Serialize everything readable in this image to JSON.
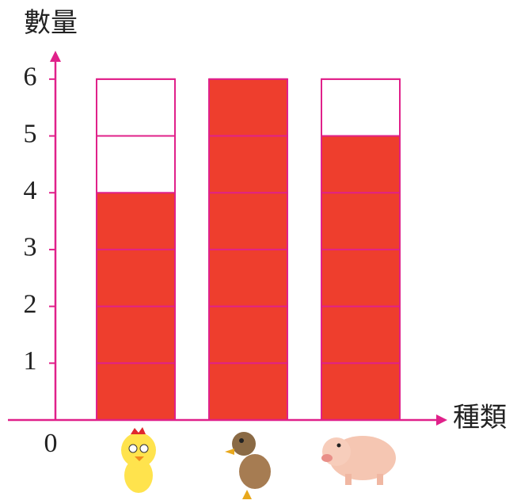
{
  "chart_data": {
    "type": "bar",
    "y_label": "數量",
    "x_label": "種類",
    "categories": [
      null,
      null,
      null
    ],
    "values": [
      4,
      6,
      5
    ],
    "color": "#ee3e2d",
    "outline_color": "#e0218a",
    "ylim": [
      0,
      6.5
    ],
    "yticks": [
      0,
      1,
      2,
      3,
      4,
      5,
      6
    ],
    "grid": true
  }
}
